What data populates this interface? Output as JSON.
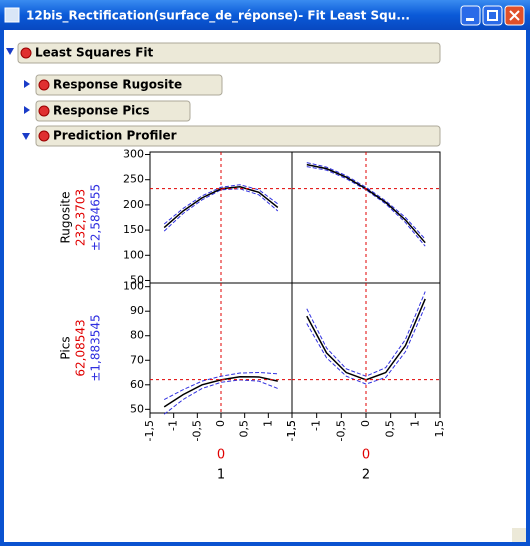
{
  "window": {
    "title": "12bis_Rectification(surface_de_réponse)- Fit Least Squ..."
  },
  "outline": {
    "title": "Least Squares Fit",
    "items": [
      "Response Rugosite",
      "Response Pics",
      "Prediction Profiler"
    ]
  },
  "profiler": {
    "factors": [
      {
        "name": "1",
        "value": 0,
        "xlim": [
          -1.5,
          1.5
        ],
        "xticks": [
          {
            "value": -1.5,
            "label": "-1,5"
          },
          -1,
          {
            "value": -0.5,
            "label": "-0,5"
          },
          0,
          {
            "value": 0.5,
            "label": "0,5"
          },
          1,
          {
            "value": 1.5,
            "label": "1,5"
          }
        ],
        "x": [
          -1.2,
          -0.8,
          -0.4,
          0,
          0.4,
          0.8,
          1.2
        ]
      },
      {
        "name": "2",
        "value": 0,
        "xlim": [
          -1.5,
          1.5
        ],
        "xticks": [
          {
            "value": -1.5,
            "label": "-1,5"
          },
          -1,
          {
            "value": -0.5,
            "label": "-0,5"
          },
          0,
          {
            "value": 0.5,
            "label": "0,5"
          },
          1,
          {
            "value": 1.5,
            "label": "1,5"
          }
        ],
        "x": [
          -1.2,
          -0.8,
          -0.4,
          0,
          0.4,
          0.8,
          1.2
        ]
      }
    ],
    "responses": [
      {
        "name": "Rugosite",
        "value": 232.3703,
        "value_label": "232,3703",
        "ci_label": "±2,584655",
        "ylim": [
          45,
          305
        ],
        "yticks": [
          50,
          100,
          150,
          200,
          250,
          300
        ],
        "curves": [
          {
            "values": [
              155,
              188,
              214,
              232,
              236,
              225,
              195
            ],
            "lower": [
              148,
              183,
              210,
              230,
              232,
              220,
              188
            ],
            "upper": [
              162,
              193,
              218,
              235,
              240,
              230,
              202
            ]
          },
          {
            "values": [
              280,
              272,
              255,
              232,
              205,
              170,
              125
            ],
            "lower": [
              276,
              269,
              252,
              230,
              202,
              165,
              118
            ],
            "upper": [
              284,
              275,
              258,
              235,
              208,
              175,
              132
            ]
          }
        ]
      },
      {
        "name": "Pics",
        "value": 62.08543,
        "value_label": "62,08543",
        "ci_label": "±1,883545",
        "ylim": [
          48.5,
          101.5
        ],
        "yticks": [
          50,
          60,
          70,
          80,
          90,
          100
        ],
        "curves": [
          {
            "values": [
              51,
              56,
              60,
              62,
              63.3,
              63.2,
              61.5
            ],
            "lower": [
              48,
              54,
              58.5,
              61,
              62,
              61.5,
              58.5
            ],
            "upper": [
              54,
              58,
              61.5,
              63.5,
              64.8,
              65,
              64.5
            ]
          },
          {
            "values": [
              88,
              73,
              65,
              62,
              65,
              76,
              95
            ],
            "lower": [
              85,
              71,
              63.5,
              60.3,
              63,
              73.5,
              92
            ],
            "upper": [
              91,
              75,
              66.5,
              63.5,
              67,
              78.5,
              98
            ]
          }
        ]
      }
    ]
  }
}
